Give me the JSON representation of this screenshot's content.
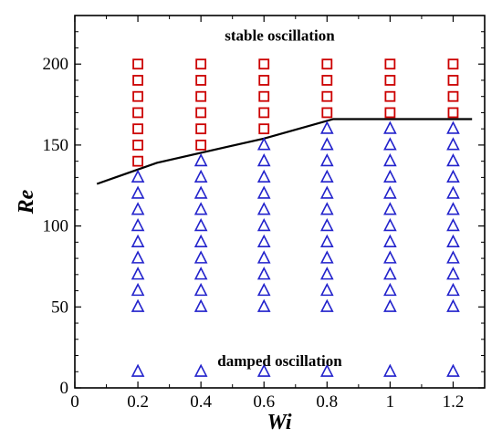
{
  "chart_data": {
    "type": "scatter",
    "xlabel": "Wi",
    "ylabel": "Re",
    "xlim": [
      0,
      1.3
    ],
    "ylim": [
      0,
      230
    ],
    "xticks": [
      {
        "value": 0,
        "label": "0"
      },
      {
        "value": 0.2,
        "label": "0.2"
      },
      {
        "value": 0.4,
        "label": "0.4"
      },
      {
        "value": 0.6,
        "label": "0.6"
      },
      {
        "value": 0.8,
        "label": "0.8"
      },
      {
        "value": 1.0,
        "label": "1"
      },
      {
        "value": 1.2,
        "label": "1.2"
      }
    ],
    "yticks": [
      {
        "value": 0,
        "label": "0"
      },
      {
        "value": 50,
        "label": "50"
      },
      {
        "value": 100,
        "label": "100"
      },
      {
        "value": 150,
        "label": "150"
      },
      {
        "value": 200,
        "label": "200"
      }
    ],
    "grid": false,
    "annotations": [
      {
        "text": "stable oscillation",
        "x": 0.65,
        "y": 218
      },
      {
        "text": "damped oscillation",
        "x": 0.65,
        "y": 17
      }
    ],
    "series": [
      {
        "marker": "square",
        "color": "#cc0000",
        "points": [
          [
            0.2,
            140
          ],
          [
            0.2,
            150
          ],
          [
            0.2,
            160
          ],
          [
            0.2,
            170
          ],
          [
            0.2,
            180
          ],
          [
            0.2,
            190
          ],
          [
            0.2,
            200
          ],
          [
            0.4,
            150
          ],
          [
            0.4,
            160
          ],
          [
            0.4,
            170
          ],
          [
            0.4,
            180
          ],
          [
            0.4,
            190
          ],
          [
            0.4,
            200
          ],
          [
            0.6,
            160
          ],
          [
            0.6,
            170
          ],
          [
            0.6,
            180
          ],
          [
            0.6,
            190
          ],
          [
            0.6,
            200
          ],
          [
            0.8,
            170
          ],
          [
            0.8,
            180
          ],
          [
            0.8,
            190
          ],
          [
            0.8,
            200
          ],
          [
            1.0,
            170
          ],
          [
            1.0,
            180
          ],
          [
            1.0,
            190
          ],
          [
            1.0,
            200
          ],
          [
            1.2,
            170
          ],
          [
            1.2,
            180
          ],
          [
            1.2,
            190
          ],
          [
            1.2,
            200
          ]
        ]
      },
      {
        "marker": "triangle",
        "color": "#2222cc",
        "points": [
          [
            0.2,
            10
          ],
          [
            0.2,
            50
          ],
          [
            0.2,
            60
          ],
          [
            0.2,
            70
          ],
          [
            0.2,
            80
          ],
          [
            0.2,
            90
          ],
          [
            0.2,
            100
          ],
          [
            0.2,
            110
          ],
          [
            0.2,
            120
          ],
          [
            0.2,
            130
          ],
          [
            0.4,
            10
          ],
          [
            0.4,
            50
          ],
          [
            0.4,
            60
          ],
          [
            0.4,
            70
          ],
          [
            0.4,
            80
          ],
          [
            0.4,
            90
          ],
          [
            0.4,
            100
          ],
          [
            0.4,
            110
          ],
          [
            0.4,
            120
          ],
          [
            0.4,
            130
          ],
          [
            0.4,
            140
          ],
          [
            0.6,
            10
          ],
          [
            0.6,
            50
          ],
          [
            0.6,
            60
          ],
          [
            0.6,
            70
          ],
          [
            0.6,
            80
          ],
          [
            0.6,
            90
          ],
          [
            0.6,
            100
          ],
          [
            0.6,
            110
          ],
          [
            0.6,
            120
          ],
          [
            0.6,
            130
          ],
          [
            0.6,
            140
          ],
          [
            0.6,
            150
          ],
          [
            0.8,
            10
          ],
          [
            0.8,
            50
          ],
          [
            0.8,
            60
          ],
          [
            0.8,
            70
          ],
          [
            0.8,
            80
          ],
          [
            0.8,
            90
          ],
          [
            0.8,
            100
          ],
          [
            0.8,
            110
          ],
          [
            0.8,
            120
          ],
          [
            0.8,
            130
          ],
          [
            0.8,
            140
          ],
          [
            0.8,
            150
          ],
          [
            0.8,
            160
          ],
          [
            1.0,
            10
          ],
          [
            1.0,
            50
          ],
          [
            1.0,
            60
          ],
          [
            1.0,
            70
          ],
          [
            1.0,
            80
          ],
          [
            1.0,
            90
          ],
          [
            1.0,
            100
          ],
          [
            1.0,
            110
          ],
          [
            1.0,
            120
          ],
          [
            1.0,
            130
          ],
          [
            1.0,
            140
          ],
          [
            1.0,
            150
          ],
          [
            1.0,
            160
          ],
          [
            1.2,
            10
          ],
          [
            1.2,
            50
          ],
          [
            1.2,
            60
          ],
          [
            1.2,
            70
          ],
          [
            1.2,
            80
          ],
          [
            1.2,
            90
          ],
          [
            1.2,
            100
          ],
          [
            1.2,
            110
          ],
          [
            1.2,
            120
          ],
          [
            1.2,
            130
          ],
          [
            1.2,
            140
          ],
          [
            1.2,
            150
          ],
          [
            1.2,
            160
          ]
        ]
      },
      {
        "marker": "line",
        "color": "#000000",
        "points": [
          [
            0.07,
            126
          ],
          [
            0.26,
            139
          ],
          [
            0.6,
            154
          ],
          [
            0.82,
            166
          ],
          [
            1.26,
            166
          ]
        ]
      }
    ]
  }
}
